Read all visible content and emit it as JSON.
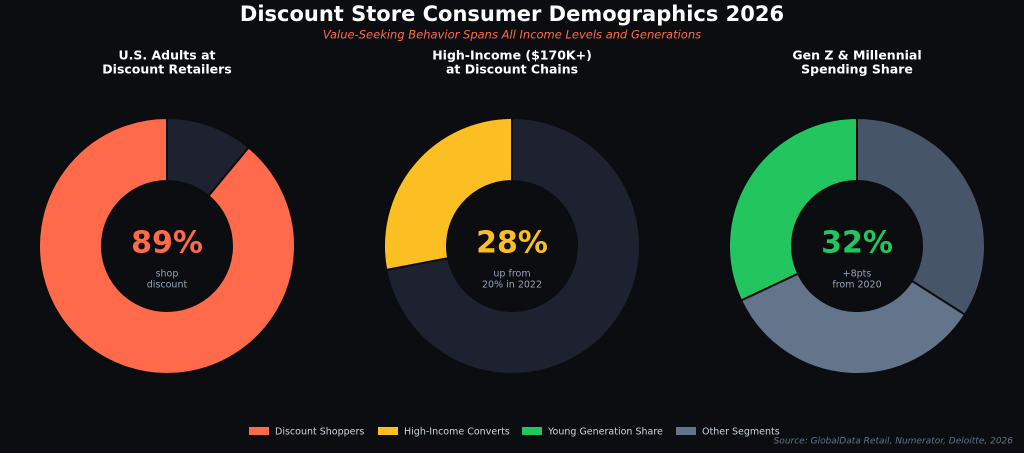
{
  "title": "Discount Store Consumer Demographics 2026",
  "subtitle": "Value-Seeking Behavior Spans All Income Levels and Generations",
  "source": "Source: GlobalData Retail, Numerator, Deloitte, 2026",
  "legend": [
    {
      "name": "Discount Shoppers",
      "color": "#ff6b4a"
    },
    {
      "name": "High-Income Converts",
      "color": "#fbbf24"
    },
    {
      "name": "Young Generation Share",
      "color": "#22c55e"
    },
    {
      "name": "Other Segments",
      "color": "#64748b"
    }
  ],
  "chart_data": [
    {
      "type": "donut",
      "title": [
        "U.S. Adults at",
        "Discount Retailers"
      ],
      "values": [
        89,
        11
      ],
      "value_labels": [
        "89%",
        null
      ],
      "colors": [
        "#ff6b4a",
        "#1e2230"
      ],
      "note": [
        "shop",
        "discount"
      ]
    },
    {
      "type": "donut",
      "title": [
        "High-Income ($170K+)",
        "at Discount Chains"
      ],
      "values": [
        28,
        72
      ],
      "value_labels": [
        "28%",
        null
      ],
      "colors": [
        "#fbbf24",
        "#1e2230"
      ],
      "note": [
        "up from",
        "20% in 2022"
      ]
    },
    {
      "type": "donut",
      "title": [
        "Gen Z & Millennial",
        "Spending Share"
      ],
      "values": [
        32,
        34,
        34
      ],
      "value_labels": [
        "32%",
        null,
        null
      ],
      "colors": [
        "#22c55e",
        "#64748b",
        "#475569"
      ],
      "note": [
        "+8pts",
        "from 2020"
      ]
    }
  ]
}
